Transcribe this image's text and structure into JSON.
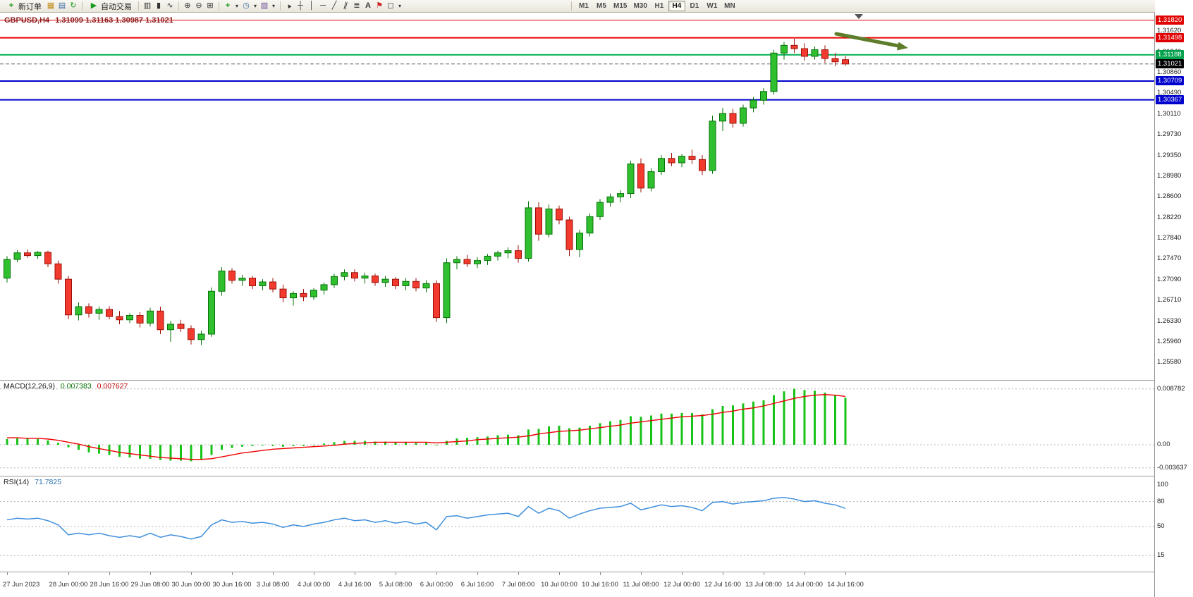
{
  "toolbar": {
    "new_order_label": "新订单",
    "autotrade_label": "自动交易",
    "timeframes": [
      "M1",
      "M5",
      "M15",
      "M30",
      "H1",
      "H4",
      "D1",
      "W1",
      "MN"
    ],
    "active_timeframe": "H4",
    "notification_count": "1"
  },
  "icons": {
    "new_order": "+",
    "charts": "▦",
    "market_watch": "▤",
    "refresh": "↻",
    "autotrade": "▶",
    "bar_chart": "▥",
    "candle_chart": "▮",
    "line_chart": "∿",
    "zoom_in": "⊕",
    "zoom_out": "⊖",
    "tile_windows": "⊞",
    "indicators": "+",
    "periods": "◷",
    "templates": "▧",
    "dropdown": "▾",
    "cursor": "▲",
    "crosshair": "┼",
    "vline": "│",
    "hline": "─",
    "trendline": "╱",
    "channel": "∥",
    "fibonacci": "≣",
    "text": "A",
    "label": "⚑",
    "shapes": "◻"
  },
  "chart": {
    "title_symbol": "GBPUSD,H4",
    "title_ohlc": "1.31099 1.31163 1.30987 1.31021"
  },
  "chart_data": {
    "type": "candlestick",
    "symbol": "GBPUSD",
    "timeframe": "H4",
    "current_bar": {
      "open": 1.31099,
      "high": 1.31163,
      "low": 1.30987,
      "close": 1.31021
    },
    "arrow_color": "#5d7d2b",
    "colors": {
      "up_fill": "#2fbf2f",
      "up_stroke": "#067306",
      "down_fill": "#f23b2e",
      "down_stroke": "#9c0f06",
      "macd_hist": "#17c317",
      "macd_signal": "#f00000",
      "rsi_line": "#3f8fdc"
    },
    "price_axis": {
      "min": 1.247,
      "max": 1.31955,
      "labels": [
        1.3162,
        1.3124,
        1.3086,
        1.3049,
        1.3011,
        1.2973,
        1.2935,
        1.2898,
        1.286,
        1.2822,
        1.2784,
        1.2747,
        1.2709,
        1.2671,
        1.2633,
        1.2596,
        1.2558
      ]
    },
    "levels": [
      {
        "price": 1.3182,
        "color": "#d40000",
        "width": 1,
        "label_bg": "#e00000"
      },
      {
        "price": 1.31498,
        "color": "#e80000",
        "width": 2,
        "label_bg": "#e00000"
      },
      {
        "price": 1.31188,
        "color": "#00b050",
        "width": 2,
        "label_bg": "#00a14b"
      },
      {
        "price": 1.31021,
        "color": "#606060",
        "width": 1,
        "dash": true,
        "label_bg": "#000000"
      },
      {
        "price": 1.30709,
        "color": "#0000cd",
        "width": 2,
        "label_bg": "#0000cd"
      },
      {
        "price": 1.30367,
        "color": "#0000cd",
        "width": 2,
        "label_bg": "#0000cd"
      }
    ],
    "candles": [
      [
        1.2712,
        1.2752,
        1.2704,
        1.2746
      ],
      [
        1.2746,
        1.2763,
        1.2741,
        1.2758
      ],
      [
        1.2758,
        1.2764,
        1.2749,
        1.2753
      ],
      [
        1.2753,
        1.2761,
        1.2747,
        1.2759
      ],
      [
        1.2759,
        1.2762,
        1.2732,
        1.2738
      ],
      [
        1.2738,
        1.2744,
        1.2702,
        1.271
      ],
      [
        1.271,
        1.2716,
        1.2637,
        1.2645
      ],
      [
        1.2645,
        1.2668,
        1.2635,
        1.266
      ],
      [
        1.266,
        1.2666,
        1.264,
        1.2648
      ],
      [
        1.2648,
        1.266,
        1.2636,
        1.2655
      ],
      [
        1.2655,
        1.2661,
        1.2637,
        1.2642
      ],
      [
        1.2642,
        1.2652,
        1.2628,
        1.2636
      ],
      [
        1.2636,
        1.2648,
        1.263,
        1.2644
      ],
      [
        1.2644,
        1.265,
        1.2622,
        1.263
      ],
      [
        1.263,
        1.2658,
        1.2624,
        1.2652
      ],
      [
        1.2652,
        1.266,
        1.261,
        1.2618
      ],
      [
        1.2618,
        1.2634,
        1.2596,
        1.2628
      ],
      [
        1.2628,
        1.2636,
        1.2614,
        1.262
      ],
      [
        1.262,
        1.2626,
        1.2591,
        1.26
      ],
      [
        1.26,
        1.2616,
        1.259,
        1.261
      ],
      [
        1.261,
        1.2695,
        1.2605,
        1.2688
      ],
      [
        1.2688,
        1.2732,
        1.268,
        1.2725
      ],
      [
        1.2725,
        1.273,
        1.2702,
        1.2708
      ],
      [
        1.2708,
        1.2718,
        1.2698,
        1.2712
      ],
      [
        1.2712,
        1.2716,
        1.2692,
        1.2698
      ],
      [
        1.2698,
        1.271,
        1.269,
        1.2705
      ],
      [
        1.2705,
        1.2712,
        1.2686,
        1.2692
      ],
      [
        1.2692,
        1.27,
        1.2668,
        1.2676
      ],
      [
        1.2676,
        1.2688,
        1.2662,
        1.2684
      ],
      [
        1.2684,
        1.2692,
        1.267,
        1.2678
      ],
      [
        1.2678,
        1.2694,
        1.2672,
        1.269
      ],
      [
        1.269,
        1.2704,
        1.2682,
        1.27
      ],
      [
        1.27,
        1.272,
        1.2694,
        1.2715
      ],
      [
        1.2715,
        1.2728,
        1.2708,
        1.2722
      ],
      [
        1.2722,
        1.2728,
        1.2706,
        1.2712
      ],
      [
        1.2712,
        1.2722,
        1.2702,
        1.2716
      ],
      [
        1.2716,
        1.272,
        1.2698,
        1.2704
      ],
      [
        1.2704,
        1.2716,
        1.2696,
        1.271
      ],
      [
        1.271,
        1.2714,
        1.2692,
        1.2698
      ],
      [
        1.2698,
        1.2712,
        1.269,
        1.2706
      ],
      [
        1.2706,
        1.2712,
        1.2688,
        1.2694
      ],
      [
        1.2694,
        1.2708,
        1.2686,
        1.2702
      ],
      [
        1.2702,
        1.2708,
        1.2632,
        1.264
      ],
      [
        1.264,
        1.2748,
        1.263,
        1.274
      ],
      [
        1.274,
        1.2752,
        1.2728,
        1.2746
      ],
      [
        1.2746,
        1.2754,
        1.2732,
        1.2738
      ],
      [
        1.2738,
        1.275,
        1.273,
        1.2744
      ],
      [
        1.2744,
        1.2756,
        1.2736,
        1.2752
      ],
      [
        1.2752,
        1.2762,
        1.2744,
        1.2758
      ],
      [
        1.2758,
        1.2768,
        1.2748,
        1.2762
      ],
      [
        1.2762,
        1.2772,
        1.274,
        1.2748
      ],
      [
        1.2748,
        1.2852,
        1.2742,
        1.284
      ],
      [
        1.284,
        1.285,
        1.278,
        1.2792
      ],
      [
        1.2792,
        1.2846,
        1.2786,
        1.2838
      ],
      [
        1.2838,
        1.2844,
        1.281,
        1.2818
      ],
      [
        1.2818,
        1.2824,
        1.2752,
        1.2764
      ],
      [
        1.2764,
        1.28,
        1.275,
        1.2794
      ],
      [
        1.2794,
        1.283,
        1.2788,
        1.2824
      ],
      [
        1.2824,
        1.2856,
        1.2818,
        1.285
      ],
      [
        1.285,
        1.2866,
        1.2842,
        1.286
      ],
      [
        1.286,
        1.2872,
        1.285,
        1.2866
      ],
      [
        1.2866,
        1.2926,
        1.2858,
        1.292
      ],
      [
        1.292,
        1.293,
        1.2868,
        1.2876
      ],
      [
        1.2876,
        1.2912,
        1.287,
        1.2906
      ],
      [
        1.2906,
        1.2936,
        1.29,
        1.293
      ],
      [
        1.293,
        1.294,
        1.2916,
        1.2922
      ],
      [
        1.2922,
        1.2938,
        1.2914,
        1.2934
      ],
      [
        1.2934,
        1.2946,
        1.292,
        1.2928
      ],
      [
        1.2928,
        1.2936,
        1.29,
        1.2908
      ],
      [
        1.2908,
        1.3008,
        1.2902,
        1.2998
      ],
      [
        1.2998,
        1.3022,
        1.298,
        1.3012
      ],
      [
        1.3012,
        1.302,
        1.2986,
        1.2994
      ],
      [
        1.2994,
        1.3028,
        1.2988,
        1.3022
      ],
      [
        1.3022,
        1.3042,
        1.3014,
        1.3036
      ],
      [
        1.3036,
        1.3058,
        1.3028,
        1.3052
      ],
      [
        1.3052,
        1.3128,
        1.3046,
        1.3122
      ],
      [
        1.3122,
        1.3142,
        1.311,
        1.3136
      ],
      [
        1.3136,
        1.3148,
        1.3122,
        1.313
      ],
      [
        1.313,
        1.314,
        1.3108,
        1.3116
      ],
      [
        1.3116,
        1.3134,
        1.311,
        1.3128
      ],
      [
        1.3128,
        1.3136,
        1.3104,
        1.3112
      ],
      [
        1.3112,
        1.3122,
        1.3098,
        1.3106
      ],
      [
        1.31099,
        1.31163,
        1.30987,
        1.31021
      ]
    ],
    "time_labels": [
      {
        "bar": 0,
        "text": "27 Jun 2023"
      },
      {
        "bar": 6,
        "text": "28 Jun 00:00"
      },
      {
        "bar": 10,
        "text": "28 Jun 16:00"
      },
      {
        "bar": 14,
        "text": "29 Jun 08:00"
      },
      {
        "bar": 18,
        "text": "30 Jun 00:00"
      },
      {
        "bar": 22,
        "text": "30 Jun 16:00"
      },
      {
        "bar": 26,
        "text": "3 Jul 08:00"
      },
      {
        "bar": 30,
        "text": "4 Jul 00:00"
      },
      {
        "bar": 34,
        "text": "4 Jul 16:00"
      },
      {
        "bar": 38,
        "text": "5 Jul 08:00"
      },
      {
        "bar": 42,
        "text": "6 Jul 00:00"
      },
      {
        "bar": 46,
        "text": "6 Jul 16:00"
      },
      {
        "bar": 50,
        "text": "7 Jul 08:00"
      },
      {
        "bar": 54,
        "text": "10 Jul 00:00"
      },
      {
        "bar": 58,
        "text": "10 Jul 16:00"
      },
      {
        "bar": 62,
        "text": "11 Jul 08:00"
      },
      {
        "bar": 66,
        "text": "12 Jul 00:00"
      },
      {
        "bar": 70,
        "text": "12 Jul 16:00"
      },
      {
        "bar": 74,
        "text": "13 Jul 08:00"
      },
      {
        "bar": 78,
        "text": "14 Jul 00:00"
      },
      {
        "bar": 82,
        "text": "14 Jul 16:00"
      }
    ],
    "macd": {
      "name": "MACD(12,26,9)",
      "value_main": "0.007383",
      "value_signal": "0.007627",
      "axis": [
        {
          "v": 0.008782,
          "text": "0.008782"
        },
        {
          "v": 0,
          "text": "0.00"
        },
        {
          "v": -0.003637,
          "text": "-0.003637"
        }
      ],
      "histogram": [
        0.0009,
        0.001,
        0.001,
        0.0009,
        0.0007,
        0.0003,
        -0.0004,
        -0.0008,
        -0.0012,
        -0.0014,
        -0.0016,
        -0.0019,
        -0.002,
        -0.0022,
        -0.0022,
        -0.0024,
        -0.0025,
        -0.0025,
        -0.0026,
        -0.0024,
        -0.0016,
        -0.0008,
        -0.0005,
        -0.0003,
        -0.0002,
        -0.0001,
        -0.0002,
        -0.0003,
        -0.0002,
        -0.0002,
        0.0,
        0.0002,
        0.0004,
        0.0006,
        0.0006,
        0.0006,
        0.0005,
        0.0005,
        0.0004,
        0.0004,
        0.0003,
        0.0003,
        0.0,
        0.0006,
        0.001,
        0.0011,
        0.0012,
        0.0013,
        0.0015,
        0.0016,
        0.0015,
        0.0024,
        0.0025,
        0.0029,
        0.003,
        0.0026,
        0.0027,
        0.003,
        0.0034,
        0.0037,
        0.0039,
        0.0045,
        0.0044,
        0.0046,
        0.0049,
        0.0049,
        0.005,
        0.005,
        0.0048,
        0.0056,
        0.0061,
        0.0062,
        0.0065,
        0.0068,
        0.007,
        0.0078,
        0.0084,
        0.0088,
        0.0086,
        0.0085,
        0.0082,
        0.0078,
        0.0074
      ],
      "signal": [
        0.0011,
        0.0011,
        0.001,
        0.001,
        0.0009,
        0.0007,
        0.0004,
        0.0001,
        -0.0003,
        -0.0006,
        -0.0009,
        -0.0012,
        -0.0014,
        -0.0016,
        -0.0018,
        -0.002,
        -0.0021,
        -0.0022,
        -0.0023,
        -0.0023,
        -0.0022,
        -0.0019,
        -0.0016,
        -0.0013,
        -0.0011,
        -0.0009,
        -0.0007,
        -0.0006,
        -0.0005,
        -0.0004,
        -0.0003,
        -0.0002,
        -0.0001,
        0.0001,
        0.0002,
        0.0003,
        0.0004,
        0.0004,
        0.0004,
        0.0004,
        0.0004,
        0.0004,
        0.0003,
        0.0004,
        0.0005,
        0.0006,
        0.0008,
        0.0009,
        0.001,
        0.0011,
        0.0012,
        0.0014,
        0.0017,
        0.0019,
        0.0021,
        0.0022,
        0.0023,
        0.0025,
        0.0027,
        0.0029,
        0.0031,
        0.0034,
        0.0036,
        0.0038,
        0.004,
        0.0042,
        0.0044,
        0.0045,
        0.0046,
        0.0048,
        0.0051,
        0.0053,
        0.0056,
        0.0058,
        0.0061,
        0.0065,
        0.0069,
        0.0073,
        0.0076,
        0.0078,
        0.0079,
        0.0078,
        0.0076
      ]
    },
    "rsi": {
      "name": "RSI(14)",
      "value": "71.7825",
      "axis": [
        {
          "v": 100,
          "text": "100"
        },
        {
          "v": 80,
          "text": "80"
        },
        {
          "v": 50,
          "text": "50"
        },
        {
          "v": 15,
          "text": "15"
        }
      ],
      "levels": [
        80,
        50,
        15
      ],
      "values": [
        58,
        60,
        59,
        60,
        57,
        52,
        40,
        42,
        40,
        42,
        39,
        37,
        39,
        37,
        42,
        37,
        40,
        38,
        35,
        38,
        52,
        58,
        55,
        56,
        54,
        55,
        53,
        49,
        52,
        50,
        53,
        55,
        58,
        60,
        57,
        58,
        55,
        57,
        54,
        56,
        53,
        55,
        46,
        62,
        63,
        60,
        62,
        64,
        65,
        66,
        62,
        74,
        66,
        72,
        69,
        60,
        65,
        69,
        72,
        73,
        74,
        78,
        70,
        73,
        76,
        74,
        75,
        73,
        69,
        79,
        80,
        77,
        79,
        80,
        81,
        84,
        85,
        83,
        80,
        81,
        78,
        76,
        71.8
      ]
    }
  }
}
